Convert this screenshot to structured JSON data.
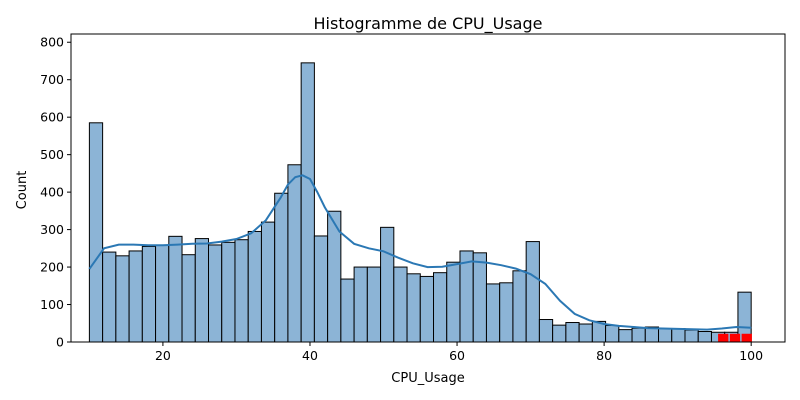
{
  "chart_data": {
    "type": "bar",
    "subtype": "histogram-with-kde",
    "title": "Histogramme de CPU_Usage",
    "xlabel": "CPU_Usage",
    "ylabel": "Count",
    "xlim": [
      7.5,
      104.6
    ],
    "ylim": [
      0,
      822
    ],
    "xticks": [
      20,
      40,
      60,
      80,
      100
    ],
    "yticks": [
      0,
      100,
      200,
      300,
      400,
      500,
      600,
      700,
      800
    ],
    "grid": false,
    "legend": "none",
    "bin_start": 10,
    "bin_width": 1.8,
    "counts": [
      585,
      240,
      230,
      243,
      255,
      258,
      282,
      233,
      276,
      259,
      266,
      273,
      295,
      320,
      397,
      473,
      745,
      283,
      349,
      168,
      200,
      200,
      306,
      200,
      182,
      175,
      185,
      213,
      243,
      238,
      155,
      158,
      190,
      268,
      60,
      45,
      52,
      48,
      55,
      44,
      33,
      37,
      40,
      36,
      36,
      32,
      28,
      26,
      26,
      133
    ],
    "kde": {
      "x": [
        10,
        12,
        14,
        16,
        18,
        20,
        22,
        24,
        26,
        28,
        30,
        32,
        34,
        36,
        37,
        38,
        39,
        40,
        41,
        42,
        44,
        46,
        48,
        50,
        52,
        54,
        56,
        58,
        60,
        62,
        64,
        66,
        68,
        70,
        72,
        74,
        76,
        78,
        80,
        82,
        84,
        86,
        88,
        90,
        92,
        94,
        96,
        98,
        100
      ],
      "y": [
        195,
        250,
        260,
        260,
        258,
        258,
        260,
        262,
        263,
        268,
        275,
        290,
        325,
        385,
        420,
        440,
        445,
        435,
        400,
        360,
        295,
        262,
        250,
        242,
        225,
        210,
        200,
        201,
        208,
        215,
        212,
        205,
        196,
        181,
        155,
        110,
        75,
        58,
        48,
        43,
        40,
        37,
        36,
        35,
        34,
        33,
        36,
        40,
        38
      ]
    },
    "highlight_bins": {
      "color": "#ff0000",
      "x_start": [
        95.5,
        97.1,
        98.7
      ],
      "width": 1.4,
      "values": [
        22,
        22,
        22
      ]
    },
    "colors": {
      "bar_fill": "#8cb4d6",
      "bar_edge": "#000000",
      "kde_line": "#2b78b4",
      "highlight": "#ff0000"
    }
  }
}
